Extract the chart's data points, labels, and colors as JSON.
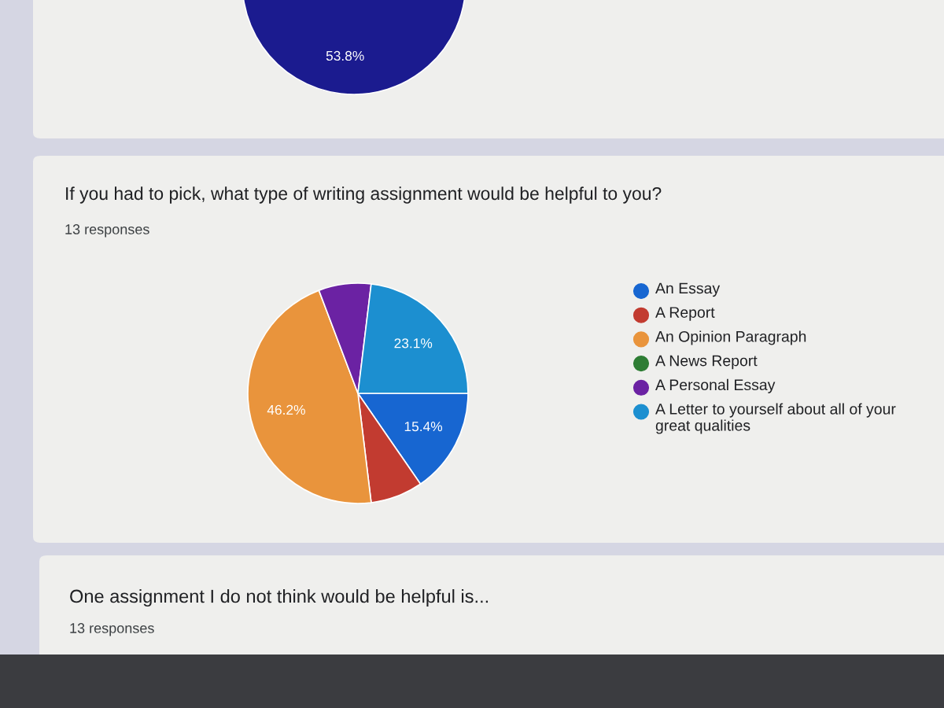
{
  "chart_data": [
    {
      "type": "pie",
      "categories": [
        null
      ],
      "values": [
        53.8
      ],
      "colors": [
        "#1b1b8f"
      ],
      "value_labels": [
        "53.8%"
      ]
    },
    {
      "type": "pie",
      "title": "If you had to pick, what type of writing assignment would be helpful to you?",
      "subtitle": "13 responses",
      "categories": [
        "An Essay",
        "A Report",
        "An Opinion Paragraph",
        "A News Report",
        "A Personal Essay",
        "A Letter to yourself about all of your great qualities"
      ],
      "values": [
        15.4,
        7.7,
        46.2,
        0,
        7.7,
        23.1
      ],
      "colors": [
        "#1766d1",
        "#c23b30",
        "#e9943c",
        "#2e7d34",
        "#6b22a3",
        "#1c8fd0"
      ],
      "value_labels": [
        "15.4%",
        null,
        "46.2%",
        null,
        null,
        "23.1%"
      ],
      "legend": "right"
    },
    {
      "type": "other",
      "title": "One assignment I do not think would be helpful is...",
      "subtitle": "13 responses"
    }
  ]
}
